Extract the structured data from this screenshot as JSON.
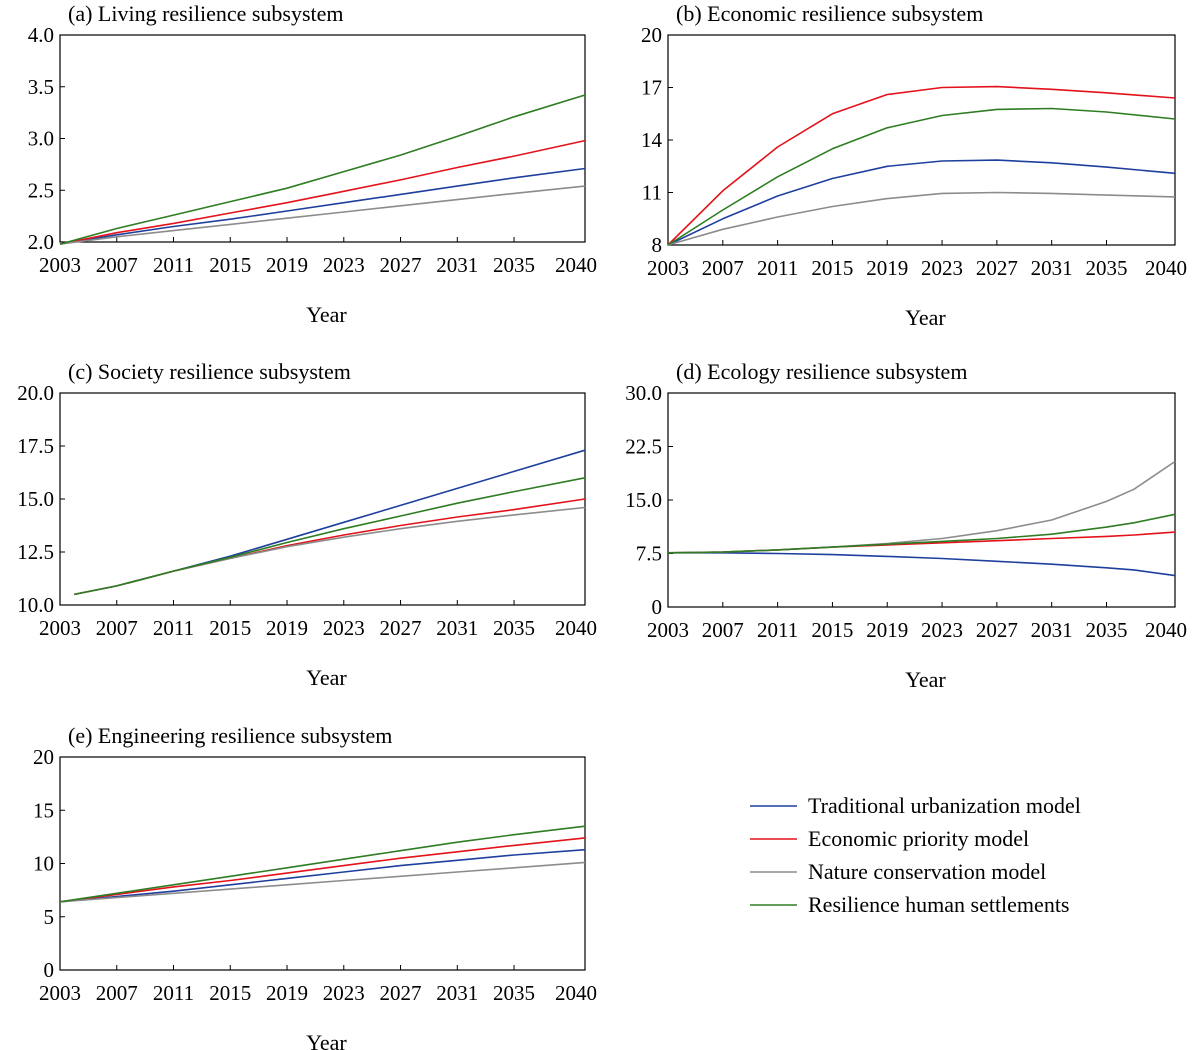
{
  "chart_data": [
    {
      "type": "line",
      "title": "(a) Living resilience subsystem",
      "xlabel": "Year",
      "ylabel": "",
      "xlim": [
        2003,
        2040
      ],
      "ylim": [
        2.0,
        4.0
      ],
      "x_ticks": [
        "2003",
        "2007",
        "2011",
        "2015",
        "2019",
        "2023",
        "2027",
        "2031",
        "2035",
        "2040"
      ],
      "y_ticks": [
        "2.0",
        "2.5",
        "3.0",
        "3.5",
        "4.0"
      ],
      "x": [
        2003,
        2007,
        2011,
        2015,
        2019,
        2023,
        2027,
        2031,
        2035,
        2040
      ],
      "series": [
        {
          "name": "Traditional urbanization model",
          "color": "#1f3f9e",
          "values": [
            1.98,
            2.07,
            2.15,
            2.22,
            2.3,
            2.38,
            2.46,
            2.54,
            2.62,
            2.71
          ]
        },
        {
          "name": "Economic priority model",
          "color": "#e3121b",
          "values": [
            1.98,
            2.09,
            2.18,
            2.28,
            2.38,
            2.49,
            2.6,
            2.72,
            2.83,
            2.98
          ]
        },
        {
          "name": "Nature conservation model",
          "color": "#8c8c8c",
          "values": [
            1.98,
            2.05,
            2.11,
            2.17,
            2.23,
            2.29,
            2.35,
            2.41,
            2.47,
            2.54
          ]
        },
        {
          "name": "Resilience human settlements",
          "color": "#2e7d22",
          "values": [
            1.98,
            2.13,
            2.26,
            2.39,
            2.52,
            2.68,
            2.84,
            3.02,
            3.21,
            3.42
          ]
        }
      ]
    },
    {
      "type": "line",
      "title": "(b) Economic resilience subsystem",
      "xlabel": "Year",
      "ylabel": "",
      "xlim": [
        2003,
        2040
      ],
      "ylim": [
        8,
        20
      ],
      "x_ticks": [
        "2003",
        "2007",
        "2011",
        "2015",
        "2019",
        "2023",
        "2027",
        "2031",
        "2035",
        "2040"
      ],
      "y_ticks": [
        "8",
        "11",
        "14",
        "17",
        "20"
      ],
      "x": [
        2003,
        2007,
        2011,
        2015,
        2019,
        2023,
        2027,
        2031,
        2035,
        2040
      ],
      "series": [
        {
          "name": "Traditional urbanization model",
          "color": "#1f3f9e",
          "values": [
            8.0,
            9.5,
            10.8,
            11.8,
            12.5,
            12.8,
            12.85,
            12.7,
            12.45,
            12.1
          ]
        },
        {
          "name": "Economic priority model",
          "color": "#e3121b",
          "values": [
            8.0,
            11.1,
            13.6,
            15.5,
            16.6,
            17.0,
            17.05,
            16.9,
            16.7,
            16.4
          ]
        },
        {
          "name": "Nature conservation model",
          "color": "#8c8c8c",
          "values": [
            8.0,
            8.9,
            9.6,
            10.2,
            10.65,
            10.95,
            11.0,
            10.95,
            10.85,
            10.75
          ]
        },
        {
          "name": "Resilience human settlements",
          "color": "#2e7d22",
          "values": [
            8.0,
            10.0,
            11.9,
            13.5,
            14.7,
            15.4,
            15.75,
            15.8,
            15.6,
            15.2
          ]
        }
      ]
    },
    {
      "type": "line",
      "title": "(c) Society resilience subsystem",
      "xlabel": "Year",
      "ylabel": "",
      "xlim": [
        2003,
        2040
      ],
      "ylim": [
        10.0,
        20.0
      ],
      "x_ticks": [
        "2003",
        "2007",
        "2011",
        "2015",
        "2019",
        "2023",
        "2027",
        "2031",
        "2035",
        "2040"
      ],
      "y_ticks": [
        "10.0",
        "12.5",
        "15.0",
        "17.5",
        "20.0"
      ],
      "x": [
        2004,
        2007,
        2011,
        2015,
        2019,
        2023,
        2027,
        2031,
        2035,
        2040
      ],
      "series": [
        {
          "name": "Traditional urbanization model",
          "color": "#1f3f9e",
          "values": [
            10.5,
            10.9,
            11.6,
            12.3,
            13.1,
            13.9,
            14.7,
            15.5,
            16.3,
            17.3
          ]
        },
        {
          "name": "Economic priority model",
          "color": "#e3121b",
          "values": [
            10.5,
            10.9,
            11.6,
            12.2,
            12.8,
            13.3,
            13.75,
            14.15,
            14.5,
            15.0
          ]
        },
        {
          "name": "Nature conservation model",
          "color": "#8c8c8c",
          "values": [
            10.5,
            10.9,
            11.6,
            12.2,
            12.75,
            13.2,
            13.6,
            13.95,
            14.25,
            14.6
          ]
        },
        {
          "name": "Resilience human settlements",
          "color": "#2e7d22",
          "values": [
            10.5,
            10.9,
            11.6,
            12.25,
            12.95,
            13.6,
            14.2,
            14.8,
            15.35,
            16.0
          ]
        }
      ]
    },
    {
      "type": "line",
      "title": "(d) Ecology resilience subsystem",
      "xlabel": "Year",
      "ylabel": "",
      "xlim": [
        2003,
        2040
      ],
      "ylim": [
        0,
        30.0
      ],
      "x_ticks": [
        "2003",
        "2007",
        "2011",
        "2015",
        "2019",
        "2023",
        "2027",
        "2031",
        "2035",
        "2040"
      ],
      "y_ticks": [
        "0",
        "7.5",
        "15.0",
        "22.5",
        "30.0"
      ],
      "x": [
        2003,
        2007,
        2011,
        2015,
        2019,
        2023,
        2027,
        2031,
        2035,
        2037,
        2040
      ],
      "series": [
        {
          "name": "Traditional urbanization model",
          "color": "#1f3f9e",
          "values": [
            7.6,
            7.6,
            7.5,
            7.35,
            7.1,
            6.8,
            6.4,
            6.0,
            5.5,
            5.2,
            4.4
          ]
        },
        {
          "name": "Economic priority model",
          "color": "#e3121b",
          "values": [
            7.6,
            7.7,
            8.0,
            8.4,
            8.7,
            9.0,
            9.3,
            9.6,
            9.9,
            10.1,
            10.5
          ]
        },
        {
          "name": "Nature conservation model",
          "color": "#8c8c8c",
          "values": [
            7.6,
            7.7,
            8.0,
            8.4,
            8.9,
            9.6,
            10.7,
            12.2,
            14.8,
            16.5,
            20.4
          ]
        },
        {
          "name": "Resilience human settlements",
          "color": "#2e7d22",
          "values": [
            7.6,
            7.7,
            8.0,
            8.4,
            8.8,
            9.2,
            9.6,
            10.2,
            11.2,
            11.8,
            13.0
          ]
        }
      ]
    },
    {
      "type": "line",
      "title": "(e) Engineering resilience subsystem",
      "xlabel": "Year",
      "ylabel": "",
      "xlim": [
        2003,
        2040
      ],
      "ylim": [
        0,
        20
      ],
      "x_ticks": [
        "2003",
        "2007",
        "2011",
        "2015",
        "2019",
        "2023",
        "2027",
        "2031",
        "2035",
        "2040"
      ],
      "y_ticks": [
        "0",
        "5",
        "10",
        "15",
        "20"
      ],
      "x": [
        2003,
        2007,
        2011,
        2015,
        2019,
        2023,
        2027,
        2031,
        2035,
        2040
      ],
      "series": [
        {
          "name": "Traditional urbanization model",
          "color": "#1f3f9e",
          "values": [
            6.4,
            6.9,
            7.4,
            8.0,
            8.6,
            9.2,
            9.8,
            10.3,
            10.8,
            11.3
          ]
        },
        {
          "name": "Economic priority model",
          "color": "#e3121b",
          "values": [
            6.4,
            7.1,
            7.8,
            8.4,
            9.1,
            9.8,
            10.5,
            11.1,
            11.7,
            12.4
          ]
        },
        {
          "name": "Nature conservation model",
          "color": "#8c8c8c",
          "values": [
            6.4,
            6.8,
            7.2,
            7.6,
            8.0,
            8.4,
            8.8,
            9.2,
            9.6,
            10.1
          ]
        },
        {
          "name": "Resilience human settlements",
          "color": "#2e7d22",
          "values": [
            6.4,
            7.2,
            8.0,
            8.8,
            9.6,
            10.4,
            11.2,
            12.0,
            12.7,
            13.5
          ]
        }
      ]
    }
  ],
  "legend": {
    "entries": [
      {
        "label": "Traditional urbanization model",
        "color": "#1f3f9e"
      },
      {
        "label": "Economic priority model",
        "color": "#e3121b"
      },
      {
        "label": "Nature conservation model",
        "color": "#8c8c8c"
      },
      {
        "label": "Resilience human settlements",
        "color": "#2e7d22"
      }
    ]
  }
}
